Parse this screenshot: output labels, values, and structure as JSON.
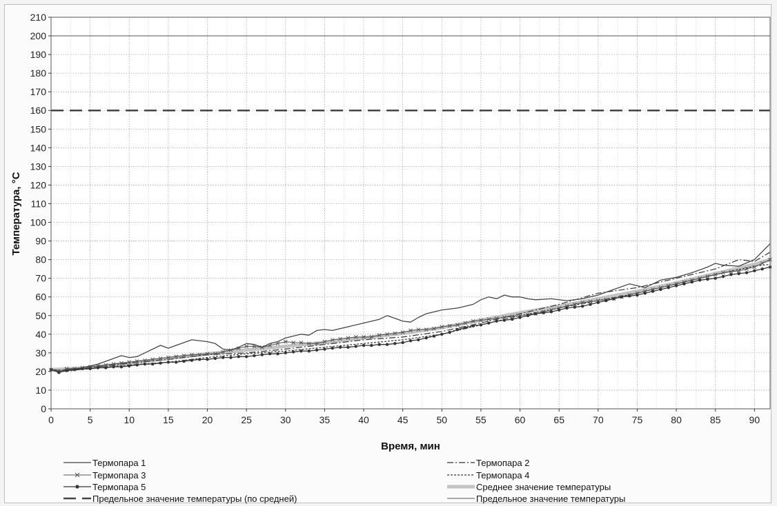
{
  "chart_data": {
    "type": "line",
    "title": "",
    "xlabel": "Время, мин",
    "ylabel": "Температура, °С",
    "xlim": [
      0,
      92
    ],
    "ylim": [
      0,
      210
    ],
    "x_ticks": [
      0,
      5,
      10,
      15,
      20,
      25,
      30,
      35,
      40,
      45,
      50,
      55,
      60,
      65,
      70,
      75,
      80,
      85,
      90
    ],
    "y_ticks": [
      0,
      10,
      20,
      30,
      40,
      50,
      60,
      70,
      80,
      90,
      100,
      110,
      120,
      130,
      140,
      150,
      160,
      170,
      180,
      190,
      200,
      210
    ],
    "grid": true,
    "legend_position": "bottom",
    "series": [
      {
        "name": "Термопара 1",
        "style": "solid",
        "color": "#444444",
        "x": [
          0,
          1,
          2,
          4,
          6,
          8,
          9,
          10,
          11,
          12,
          14,
          15,
          16,
          18,
          20,
          21,
          22,
          23,
          24,
          25,
          26,
          27,
          28,
          29,
          30,
          31,
          32,
          33,
          34,
          35,
          36,
          38,
          40,
          42,
          43,
          44,
          45,
          46,
          47,
          48,
          50,
          52,
          54,
          55,
          56,
          57,
          58,
          59,
          60,
          61,
          62,
          64,
          66,
          68,
          70,
          72,
          74,
          75,
          76,
          78,
          80,
          82,
          84,
          85,
          86,
          88,
          90,
          92
        ],
        "y": [
          21,
          19.5,
          21,
          22,
          24,
          27,
          28.5,
          27.5,
          28,
          30,
          34,
          32.5,
          34,
          37,
          36,
          35,
          32,
          31.5,
          33,
          35,
          34.5,
          33,
          35,
          36,
          38,
          39,
          40,
          39.5,
          42,
          42.5,
          42,
          44,
          46,
          48,
          50,
          48.5,
          47,
          46.5,
          49,
          51,
          53,
          54,
          56,
          58.5,
          60,
          59,
          61,
          60,
          60,
          59,
          58.5,
          59,
          58,
          59,
          61,
          64,
          67,
          66,
          65,
          69,
          70.5,
          73,
          76,
          78,
          77,
          76.5,
          80,
          88.5
        ]
      },
      {
        "name": "Термопара 2",
        "style": "dash-dot",
        "color": "#333333",
        "x": [
          0,
          2,
          5,
          10,
          15,
          20,
          25,
          30,
          35,
          40,
          45,
          50,
          55,
          60,
          65,
          70,
          75,
          80,
          85,
          88,
          90,
          92
        ],
        "y": [
          21,
          20,
          22,
          24.5,
          26.5,
          29,
          30,
          32,
          34.5,
          37,
          38.5,
          41.5,
          46,
          51,
          56,
          62,
          65,
          70,
          75,
          80,
          79,
          84
        ]
      },
      {
        "name": "Термопара 3",
        "style": "x-markers",
        "color": "#555555",
        "x": [
          0,
          1,
          2,
          3,
          4,
          5,
          6,
          7,
          8,
          9,
          10,
          11,
          12,
          13,
          14,
          15,
          16,
          17,
          18,
          19,
          20,
          21,
          22,
          23,
          24,
          25,
          26,
          27,
          28,
          29,
          30,
          31,
          32,
          33,
          34,
          35,
          36,
          37,
          38,
          39,
          40,
          41,
          42,
          43,
          44,
          45,
          46,
          47,
          48,
          49,
          50,
          51,
          52,
          53,
          54,
          55,
          56,
          57,
          58,
          59,
          60,
          61,
          62,
          63,
          64,
          65,
          66,
          67,
          68,
          69,
          70,
          71,
          72,
          73,
          74,
          75,
          76,
          77,
          78,
          79,
          80,
          81,
          82,
          83,
          84,
          85,
          86,
          87,
          88,
          89,
          90,
          91,
          92
        ],
        "y": [
          21,
          20,
          21.5,
          21.5,
          22,
          22.5,
          23,
          23.5,
          24,
          24.5,
          25,
          25.5,
          26,
          26.5,
          27,
          27.5,
          28,
          28.5,
          29,
          29,
          29.5,
          29.5,
          30.5,
          31.5,
          32.5,
          33.5,
          33.5,
          33,
          34,
          35,
          36,
          35.5,
          35.5,
          35,
          35,
          36,
          37,
          37.5,
          38,
          38.5,
          38.5,
          38.5,
          39.5,
          40,
          40.5,
          41,
          42,
          42.5,
          42.5,
          43,
          44,
          44.5,
          45,
          46,
          47,
          47.5,
          48,
          48.5,
          49,
          49.5,
          50,
          50.5,
          51,
          52,
          53,
          54,
          55,
          56,
          57,
          57.5,
          58,
          58.5,
          59,
          60,
          61,
          62,
          63,
          64,
          65,
          66,
          67,
          68,
          69,
          70,
          71,
          72,
          73,
          73.5,
          74,
          75,
          76,
          78,
          80
        ]
      },
      {
        "name": "Термопара 4",
        "style": "dashed",
        "color": "#333333",
        "x": [
          0,
          2,
          5,
          10,
          15,
          20,
          25,
          30,
          35,
          40,
          45,
          50,
          55,
          60,
          65,
          70,
          75,
          80,
          85,
          90,
          92
        ],
        "y": [
          21,
          20.5,
          21.5,
          23.5,
          25,
          27.5,
          29.5,
          31,
          33,
          35,
          37,
          40,
          45,
          50,
          54,
          58,
          62,
          67,
          72,
          76.5,
          77.5
        ]
      },
      {
        "name": "Термопара 5",
        "style": "dot-markers",
        "color": "#333333",
        "x": [
          0,
          1,
          2,
          3,
          4,
          5,
          6,
          7,
          8,
          9,
          10,
          11,
          12,
          13,
          14,
          15,
          16,
          17,
          18,
          19,
          20,
          21,
          22,
          23,
          24,
          25,
          26,
          27,
          28,
          29,
          30,
          31,
          32,
          33,
          34,
          35,
          36,
          37,
          38,
          39,
          40,
          41,
          42,
          43,
          44,
          45,
          46,
          47,
          48,
          49,
          50,
          51,
          52,
          53,
          54,
          55,
          56,
          57,
          58,
          59,
          60,
          61,
          62,
          63,
          64,
          65,
          66,
          67,
          68,
          69,
          70,
          71,
          72,
          73,
          74,
          75,
          76,
          77,
          78,
          79,
          80,
          81,
          82,
          83,
          84,
          85,
          86,
          87,
          88,
          89,
          90,
          91,
          92
        ],
        "y": [
          21,
          19.5,
          20.5,
          21,
          21.5,
          21.5,
          22,
          22,
          22.5,
          22.5,
          23,
          23.5,
          24,
          24,
          24.5,
          25,
          25,
          25.5,
          26,
          26.5,
          26.5,
          27,
          27.5,
          27.5,
          28,
          28,
          28.5,
          29,
          29.5,
          29.5,
          30,
          30.5,
          31,
          31,
          31.5,
          32,
          32.5,
          33,
          33,
          33.5,
          34,
          34,
          34.5,
          34.5,
          35,
          35.5,
          36.5,
          37,
          38,
          39,
          40,
          41,
          42.5,
          43.5,
          44.5,
          45,
          46,
          47,
          47.5,
          48,
          49,
          50,
          51,
          51.5,
          52,
          53,
          54,
          54.5,
          55,
          56,
          57,
          58,
          59,
          60,
          60.5,
          61,
          62,
          63,
          64,
          65,
          66,
          67,
          68,
          69,
          69.5,
          70,
          71,
          72,
          72.5,
          73,
          74,
          75,
          76
        ]
      },
      {
        "name": "Среднее значение температуры",
        "style": "thick-light",
        "color": "#b8b8b8",
        "x": [
          0,
          5,
          10,
          15,
          20,
          25,
          30,
          35,
          40,
          45,
          50,
          55,
          60,
          65,
          70,
          75,
          80,
          85,
          90,
          92
        ],
        "y": [
          21,
          22,
          24.5,
          27,
          29.5,
          31.5,
          33.5,
          35.5,
          38,
          40.5,
          43.5,
          47.5,
          51.5,
          55,
          59,
          63,
          67.5,
          72.5,
          77.5,
          80
        ]
      },
      {
        "name": "Предельное значение температуры (по средней)",
        "style": "long-dash",
        "color": "#444444",
        "x": [
          0,
          92
        ],
        "y": [
          160,
          160
        ]
      },
      {
        "name": "Предельное значение температуры",
        "style": "solid-light",
        "color": "#8c8c8c",
        "x": [
          0,
          92
        ],
        "y": [
          200,
          200
        ]
      }
    ]
  }
}
